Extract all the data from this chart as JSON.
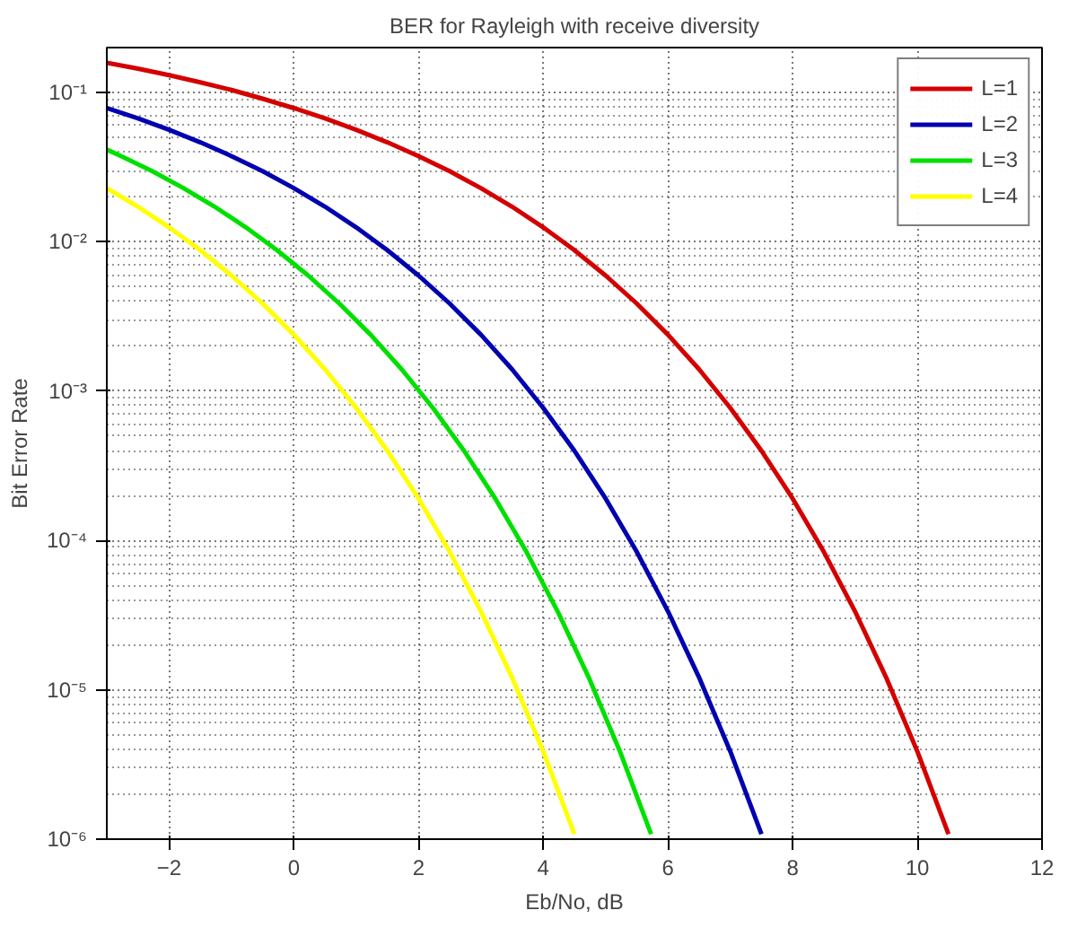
{
  "chart_data": {
    "type": "line",
    "title": "BER for Rayleigh with receive diversity",
    "xlabel": "Eb/No, dB",
    "ylabel": "Bit Error Rate",
    "log": "y",
    "grid": true,
    "legend": "top right",
    "line_style": "solid",
    "marker": "none",
    "xlim": [
      -3,
      12
    ],
    "xticks": [
      -2,
      0,
      2,
      4,
      6,
      8,
      10,
      12
    ],
    "ylim": [
      1e-06,
      0.2
    ],
    "yticks": [
      {
        "value": 1e-06,
        "label": "10⁻⁶"
      },
      {
        "value": 1e-05,
        "label": "10⁻⁵"
      },
      {
        "value": 0.0001,
        "label": "10⁻⁴"
      },
      {
        "value": 0.001,
        "label": "10⁻³"
      },
      {
        "value": 0.01,
        "label": "10⁻²"
      },
      {
        "value": 0.1,
        "label": "10⁻¹"
      }
    ],
    "series": [
      {
        "name": "L=1",
        "color": "#d40000",
        "x": [
          -3,
          -2.5,
          -2,
          -1.5,
          -1,
          -0.5,
          0,
          0.5,
          1,
          1.5,
          2,
          2.5,
          3,
          3.5,
          4,
          4.5,
          5,
          5.5,
          6,
          6.5,
          7,
          7.5,
          8,
          8.5,
          9,
          9.5,
          10,
          10.5
        ],
        "values": [
          0.158,
          0.1445,
          0.1306,
          0.117,
          0.104,
          0.0909,
          0.0786,
          0.0671,
          0.0563,
          0.0464,
          0.0375,
          0.0297,
          0.0229,
          0.0172,
          0.0125,
          0.0088,
          0.00595,
          0.00386,
          0.00239,
          0.0014,
          0.000773,
          0.000399,
          0.000191,
          8.4e-05,
          3.36e-05,
          1.21e-05,
          3.87e-06,
          1.08e-06
        ]
      },
      {
        "name": "L=2",
        "color": "#0000b0",
        "x": [
          -3,
          -2.5,
          -2,
          -1.5,
          -1,
          -0.5,
          0,
          0.5,
          1,
          1.5,
          2,
          2.5,
          3,
          3.5,
          4,
          4.5,
          5,
          5.5,
          6,
          6.5,
          7,
          7.5
        ],
        "values": [
          0.0786,
          0.0671,
          0.0563,
          0.0464,
          0.0375,
          0.0297,
          0.0229,
          0.0172,
          0.0125,
          0.0088,
          0.00595,
          0.00386,
          0.00239,
          0.0014,
          0.000773,
          0.000399,
          0.000191,
          8.4e-05,
          3.36e-05,
          1.21e-05,
          3.87e-06,
          1.08e-06
        ]
      },
      {
        "name": "L=3",
        "color": "#00e000",
        "x": [
          -3,
          -2.77,
          -2.27,
          -1.77,
          -1.27,
          -0.77,
          -0.27,
          0.23,
          0.73,
          1.23,
          1.73,
          2.23,
          2.73,
          3.23,
          3.73,
          4.23,
          4.73,
          5.23,
          5.73
        ],
        "values": [
          0.0415,
          0.0375,
          0.0297,
          0.0229,
          0.0172,
          0.0125,
          0.0088,
          0.00595,
          0.00386,
          0.00239,
          0.0014,
          0.000773,
          0.000399,
          0.000191,
          8.4e-05,
          3.36e-05,
          1.21e-05,
          3.87e-06,
          1.08e-06
        ]
      },
      {
        "name": "L=4",
        "color": "#ffff00",
        "x": [
          -3,
          -2.5,
          -2,
          -1.5,
          -1,
          -0.5,
          0,
          0.5,
          1,
          1.5,
          2,
          2.5,
          3,
          3.5,
          4,
          4.5
        ],
        "values": [
          0.0229,
          0.0172,
          0.0125,
          0.0088,
          0.00595,
          0.00386,
          0.00239,
          0.0014,
          0.000773,
          0.000399,
          0.000191,
          8.4e-05,
          3.36e-05,
          1.21e-05,
          3.87e-06,
          1.08e-06
        ]
      }
    ]
  }
}
